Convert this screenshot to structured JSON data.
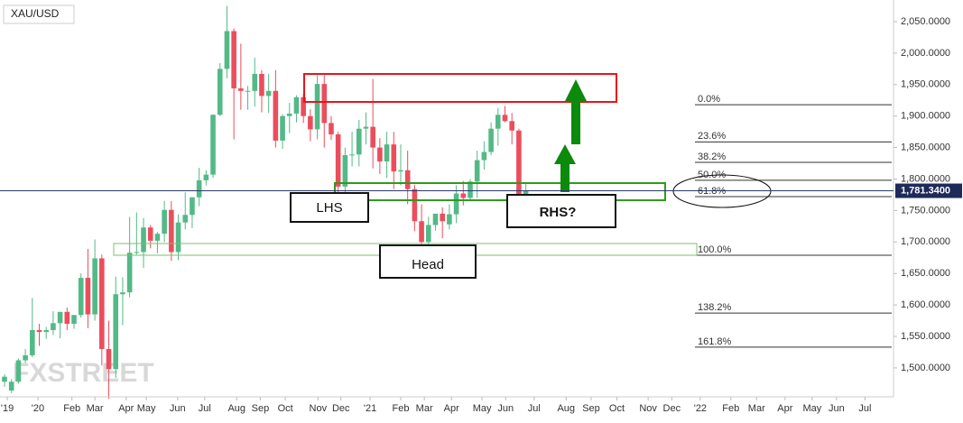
{
  "chart_data": {
    "type": "candlestick",
    "title": "XAU/USD",
    "open": [
      1478,
      1464,
      1478,
      1512,
      1520,
      1560,
      1557,
      1560,
      1571,
      1589,
      1570,
      1584,
      1643,
      1585,
      1674,
      1530,
      1498,
      1617,
      1620,
      1683,
      1684,
      1723,
      1702,
      1713,
      1751,
      1684,
      1731,
      1743,
      1771,
      1798,
      1807,
      1902,
      1975,
      2035,
      1944,
      1940,
      1940,
      1967,
      1932,
      1940,
      1861,
      1900,
      1904,
      1930,
      1900,
      1879,
      1951,
      1889,
      1871,
      1788,
      1838,
      1839,
      1880,
      1883,
      1850,
      1828,
      1855,
      1812,
      1814,
      1784,
      1733,
      1700,
      1727,
      1745,
      1728,
      1744,
      1777,
      1770,
      1796,
      1830,
      1843,
      1880,
      1902,
      1892,
      1877,
      1764
    ],
    "high": [
      1490,
      1482,
      1515,
      1530,
      1611,
      1570,
      1565,
      1590,
      1588,
      1596,
      1584,
      1650,
      1689,
      1704,
      1680,
      1575,
      1645,
      1644,
      1740,
      1747,
      1738,
      1727,
      1716,
      1765,
      1765,
      1744,
      1779,
      1771,
      1818,
      1814,
      1903,
      1984,
      2075,
      2039,
      2015,
      1948,
      1993,
      1973,
      1967,
      1973,
      1903,
      1921,
      1933,
      1936,
      1911,
      1965,
      1965,
      1900,
      1875,
      1850,
      1875,
      1894,
      1906,
      1959,
      1865,
      1875,
      1875,
      1855,
      1845,
      1791,
      1760,
      1740,
      1745,
      1755,
      1760,
      1790,
      1797,
      1800,
      1845,
      1860,
      1890,
      1913,
      1916,
      1905,
      1880,
      1795
    ],
    "low": [
      1470,
      1460,
      1475,
      1508,
      1517,
      1535,
      1546,
      1552,
      1547,
      1560,
      1562,
      1580,
      1563,
      1575,
      1504,
      1451,
      1484,
      1568,
      1612,
      1680,
      1659,
      1690,
      1682,
      1700,
      1670,
      1671,
      1720,
      1722,
      1757,
      1790,
      1802,
      1900,
      1960,
      1863,
      1910,
      1910,
      1915,
      1906,
      1905,
      1850,
      1848,
      1873,
      1890,
      1889,
      1860,
      1863,
      1850,
      1862,
      1765,
      1770,
      1820,
      1820,
      1855,
      1817,
      1808,
      1802,
      1784,
      1790,
      1760,
      1717,
      1687,
      1676,
      1718,
      1706,
      1720,
      1730,
      1758,
      1765,
      1770,
      1815,
      1838,
      1853,
      1890,
      1855,
      1763,
      1750
    ],
    "close": [
      1486,
      1478,
      1512,
      1520,
      1560,
      1557,
      1560,
      1571,
      1589,
      1570,
      1584,
      1643,
      1585,
      1674,
      1530,
      1498,
      1617,
      1620,
      1683,
      1684,
      1723,
      1702,
      1713,
      1751,
      1684,
      1731,
      1743,
      1771,
      1798,
      1807,
      1902,
      1975,
      2035,
      1944,
      1940,
      1940,
      1967,
      1932,
      1940,
      1861,
      1900,
      1904,
      1930,
      1900,
      1879,
      1951,
      1889,
      1871,
      1788,
      1838,
      1839,
      1880,
      1883,
      1850,
      1828,
      1855,
      1812,
      1814,
      1784,
      1733,
      1700,
      1727,
      1745,
      1733,
      1744,
      1777,
      1770,
      1796,
      1830,
      1843,
      1880,
      1902,
      1892,
      1877,
      1764,
      1781
    ],
    "up_color": "#53b987",
    "down_color": "#eb4d5c",
    "ylim": [
      1454,
      2084.4
    ],
    "yticks": [
      {
        "value": 1500,
        "label": "1,500.0000"
      },
      {
        "value": 1550,
        "label": "1,550.0000"
      },
      {
        "value": 1600,
        "label": "1,600.0000"
      },
      {
        "value": 1650,
        "label": "1,650.0000"
      },
      {
        "value": 1700,
        "label": "1,700.0000"
      },
      {
        "value": 1750,
        "label": "1,750.0000"
      },
      {
        "value": 1800,
        "label": "1,800.0000"
      },
      {
        "value": 1850,
        "label": "1,850.0000"
      },
      {
        "value": 1900,
        "label": "1,900.0000"
      },
      {
        "value": 1950,
        "label": "1,950.0000"
      },
      {
        "value": 2000,
        "label": "2,000.0000"
      },
      {
        "value": 2050,
        "label": "2,050.0000"
      }
    ],
    "xlim": [
      -0.65,
      127.9
    ],
    "xticks": [
      {
        "value": 0.4,
        "label": "'19"
      },
      {
        "value": 4.8,
        "label": "'20"
      },
      {
        "value": 9.7,
        "label": "Feb"
      },
      {
        "value": 13,
        "label": "Mar"
      },
      {
        "value": 17.5,
        "label": "Apr"
      },
      {
        "value": 20.4,
        "label": "May"
      },
      {
        "value": 24.9,
        "label": "Jun"
      },
      {
        "value": 28.8,
        "label": "Jul"
      },
      {
        "value": 33.4,
        "label": "Aug"
      },
      {
        "value": 36.8,
        "label": "Sep"
      },
      {
        "value": 40.4,
        "label": "Oct"
      },
      {
        "value": 45.1,
        "label": "Nov"
      },
      {
        "value": 48.4,
        "label": "Dec"
      },
      {
        "value": 52.6,
        "label": "'21"
      },
      {
        "value": 57,
        "label": "Feb"
      },
      {
        "value": 60.4,
        "label": "Mar"
      },
      {
        "value": 64.3,
        "label": "Apr"
      },
      {
        "value": 68.7,
        "label": "May"
      },
      {
        "value": 72.1,
        "label": "Jun"
      },
      {
        "value": 76.2,
        "label": "Jul"
      },
      {
        "value": 80.8,
        "label": "Aug"
      },
      {
        "value": 84.4,
        "label": "Sep"
      },
      {
        "value": 88.1,
        "label": "Oct"
      },
      {
        "value": 92.6,
        "label": "Nov"
      },
      {
        "value": 96,
        "label": "Dec"
      },
      {
        "value": 100.1,
        "label": "'22"
      },
      {
        "value": 104.5,
        "label": "Feb"
      },
      {
        "value": 108.2,
        "label": "Mar"
      },
      {
        "value": 112.3,
        "label": "Apr"
      },
      {
        "value": 116.2,
        "label": "May"
      },
      {
        "value": 119.7,
        "label": "Jun"
      },
      {
        "value": 123.8,
        "label": "Jul"
      }
    ],
    "last_price": {
      "value": 1781.34,
      "label": "1,781.3400"
    },
    "fib_levels": [
      {
        "label": "0.0%",
        "value": 1918
      },
      {
        "label": "23.6%",
        "value": 1859
      },
      {
        "label": "38.2%",
        "value": 1826.5
      },
      {
        "label": "50.0%",
        "value": 1798
      },
      {
        "label": "61.8%",
        "value": 1772
      },
      {
        "label": "100.0%",
        "value": 1679
      },
      {
        "label": "138.2%",
        "value": 1587
      },
      {
        "label": "161.8%",
        "value": 1533
      }
    ],
    "annotations": {
      "lhs": "LHS",
      "head": "Head",
      "rhs": "RHS?"
    },
    "watermark": "FXSTREET"
  }
}
